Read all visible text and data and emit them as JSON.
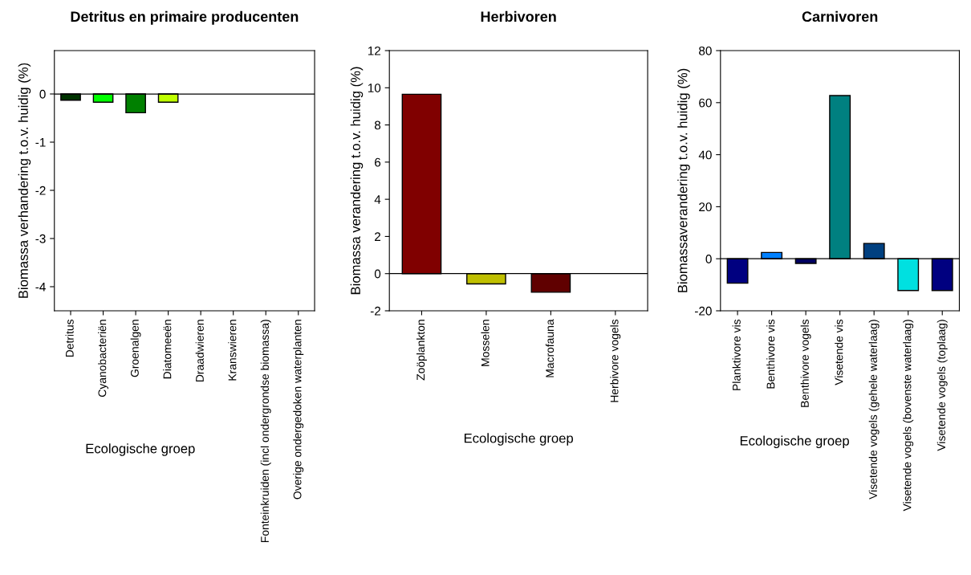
{
  "chart_data": [
    {
      "type": "bar",
      "title": "Detritus en primaire producenten",
      "xlabel": "Ecologische groep",
      "ylabel": "Biomassa verhandering t.o.v. huidig (%)",
      "categories": [
        "Detritus",
        "Cyanobacteriën",
        "Groenalgen",
        "Diatomeeën",
        "Draadwieren",
        "Kranswieren",
        "Fonteinkruiden (incl ondergrondse biomassa)",
        "Overige ondergedoken waterplanten"
      ],
      "values": [
        -0.13,
        -0.17,
        -0.39,
        -0.17,
        null,
        null,
        null,
        null
      ],
      "colors": [
        "#003300",
        "#00ff00",
        "#008000",
        "#bfff00",
        "#808080",
        "#808080",
        "#808080",
        "#808080"
      ],
      "ylim": [
        -4.5,
        0.9
      ],
      "yticks": [
        -4,
        -3,
        -2,
        -1,
        0
      ],
      "ref_lines": [
        {
          "axis": "y",
          "value": 0,
          "color": "#000000"
        }
      ],
      "grid": false,
      "legend": false
    },
    {
      "type": "bar",
      "title": "Herbivoren",
      "xlabel": "Ecologische groep",
      "ylabel": "Biomassa verandering t.o.v. huidig (%)",
      "categories": [
        "Zoöplankton",
        "Mosselen",
        "Macrofauna",
        "Herbivore vogels"
      ],
      "values": [
        9.65,
        -0.55,
        -1.0,
        null
      ],
      "colors": [
        "#800000",
        "#bfbf00",
        "#600000",
        "#808080"
      ],
      "ylim": [
        -2,
        12
      ],
      "yticks": [
        -2,
        0,
        2,
        4,
        6,
        8,
        10,
        12
      ],
      "ref_lines": [
        {
          "axis": "y",
          "value": 0,
          "color": "#000000"
        }
      ],
      "grid": false,
      "legend": false
    },
    {
      "type": "bar",
      "title": "Carnivoren",
      "xlabel": "Ecologische groep",
      "ylabel": "Biomassaverandering t.o.v. huidig (%)",
      "categories": [
        "Planktivore vis",
        "Benthivore vis",
        "Benthivore vogels",
        "Visetende vis",
        "Visetende vogels (gehele waterlaag)",
        "Visetende vogels (bovenste waterlaag)",
        "Visetende vogels (toplaag)"
      ],
      "values": [
        -9.4,
        2.4,
        -1.8,
        62.7,
        5.9,
        -12.2,
        -12.2
      ],
      "colors": [
        "#000080",
        "#0080ff",
        "#000060",
        "#008080",
        "#004080",
        "#00e0e0",
        "#000080"
      ],
      "ylim": [
        -20,
        80
      ],
      "yticks": [
        -20,
        0,
        20,
        40,
        60,
        80
      ],
      "ref_lines": [
        {
          "axis": "y",
          "value": 0,
          "color": "#000000"
        }
      ],
      "grid": false,
      "legend": false
    }
  ]
}
